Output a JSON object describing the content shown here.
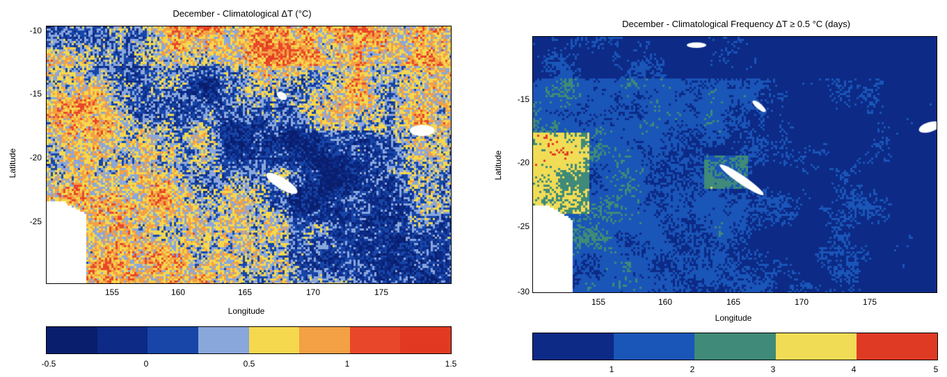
{
  "panels": [
    {
      "title": "December - Climatological ΔT (°C)",
      "xlabel": "Longitude",
      "ylabel": "Latitude",
      "x_ticks": [
        "155",
        "160",
        "165",
        "170",
        "175"
      ],
      "y_ticks": [
        "-10",
        "-15",
        "-20",
        "-25"
      ],
      "colorbar_ticks": [
        "-0.5",
        "0",
        "0.5",
        "1",
        "1.5"
      ]
    },
    {
      "title": "December - Climatological Frequency ΔT ≥ 0.5 °C (days)",
      "xlabel": "Longitude",
      "ylabel": "Latitude",
      "x_ticks": [
        "155",
        "160",
        "165",
        "170",
        "175"
      ],
      "y_ticks": [
        "-15",
        "-20",
        "-25",
        "-30"
      ],
      "colorbar_ticks": [
        "1",
        "2",
        "3",
        "4",
        "5"
      ]
    }
  ],
  "chart_data": [
    {
      "type": "heatmap",
      "title": "December - Climatological ΔT (°C)",
      "xlabel": "Longitude",
      "ylabel": "Latitude",
      "xlim": [
        150.5,
        180
      ],
      "ylim": [
        -30,
        -10
      ],
      "x_ticks": [
        155,
        160,
        165,
        170,
        175
      ],
      "y_ticks": [
        -10,
        -15,
        -20,
        -25
      ],
      "colorbar": {
        "range": [
          -0.5,
          1.5
        ],
        "ticks": [
          -0.5,
          0,
          0.5,
          1,
          1.5
        ],
        "colors": [
          "#0a1e6e",
          "#0c2a86",
          "#1746a8",
          "#8aa7dc",
          "#f5d84e",
          "#f4a044",
          "#e8472a",
          "#e23a22"
        ]
      },
      "pattern": "mostly 0.25 to 1.0 °C; lower (blue) values along a NW-SE band from about 160E,-15 to 178E,-27; higher (red) values along the northern edge near -10 to -13; land mask (white) in the lower-left near 150-153E, -24 to -30"
    },
    {
      "type": "heatmap",
      "title": "December - Climatological Frequency ΔT ≥ 0.5 °C (days)",
      "xlabel": "Longitude",
      "ylabel": "Latitude",
      "xlim": [
        150.5,
        180
      ],
      "ylim": [
        -30,
        -11
      ],
      "x_ticks": [
        155,
        160,
        165,
        170,
        175
      ],
      "y_ticks": [
        -15,
        -20,
        -25,
        -30
      ],
      "colorbar": {
        "range": [
          0,
          5
        ],
        "ticks": [
          1,
          2,
          3,
          4,
          5
        ],
        "colors": [
          "#0c2a86",
          "#1a55b8",
          "#3f8a78",
          "#f1dc56",
          "#df3b24"
        ]
      },
      "pattern": "mostly 0 to 2 days; 2 to 3 days across the west and center (152-165E); 3 to 5 days hotspots near 151-154E, -19 to -23 and near 163-166E, -21; land mask (white) in the lower-left corner"
    }
  ]
}
